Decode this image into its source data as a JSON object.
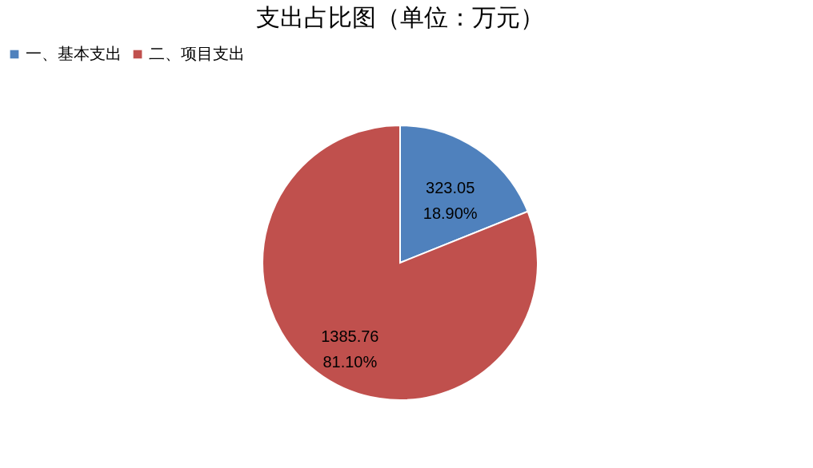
{
  "chart_data": {
    "type": "pie",
    "title": "支出占比图（单位：万元）",
    "categories": [
      "一、基本支出",
      "二、项目支出"
    ],
    "values": [
      323.05,
      1385.76
    ],
    "colors": [
      "#4f81bd",
      "#c0504d"
    ],
    "value_labels": [
      "323.05\n18.90%",
      "1385.76\n81.10%"
    ],
    "legend": "top"
  }
}
